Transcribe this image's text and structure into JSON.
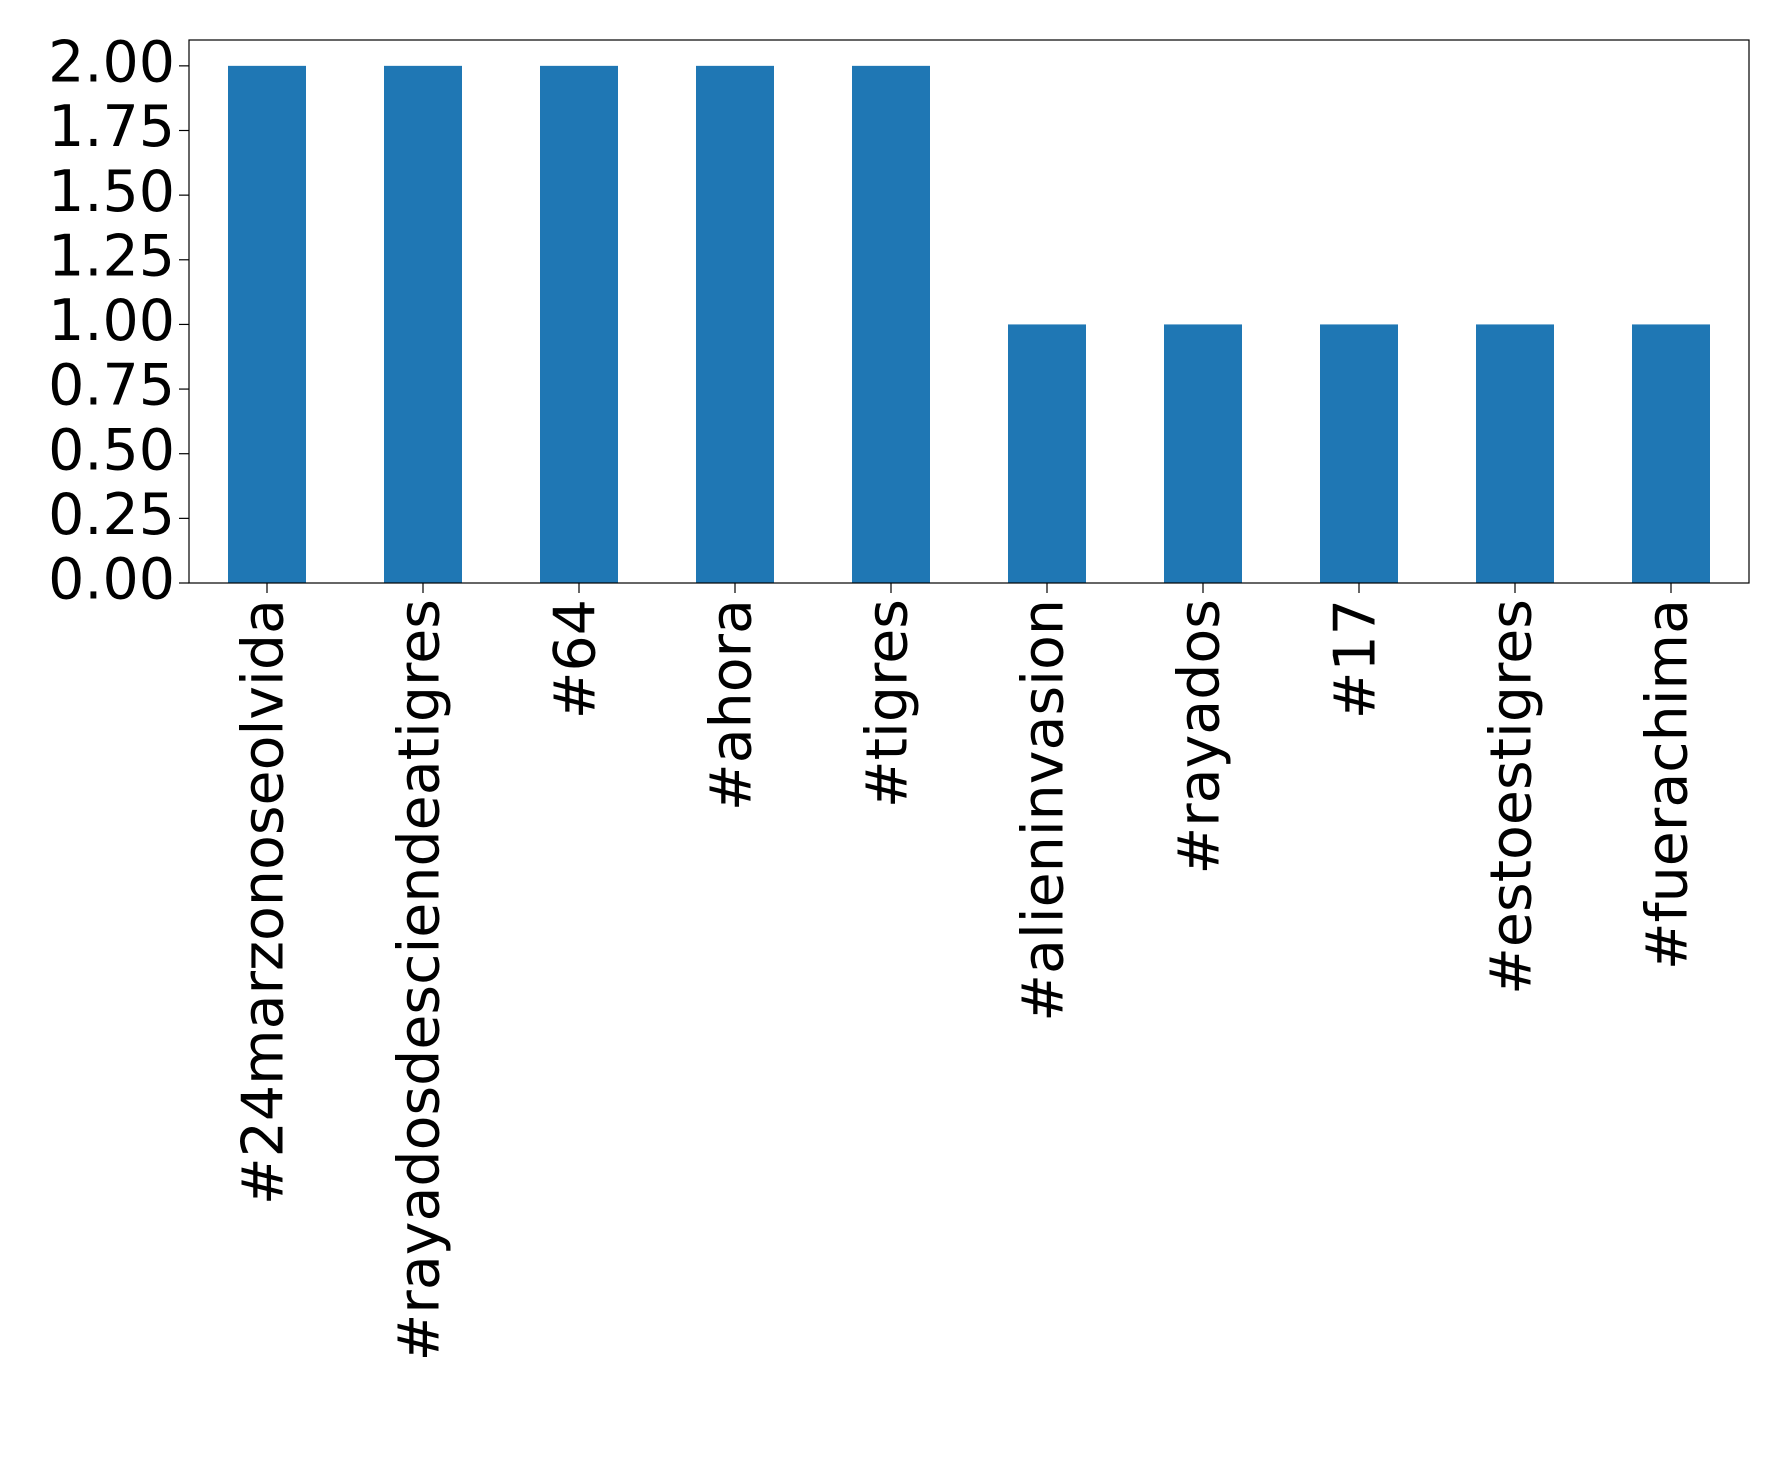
{
  "chart_data": {
    "type": "bar",
    "categories": [
      "#24marzonoseolvida",
      "#rayadosdesciendeatigres",
      "#64",
      "#ahora",
      "#tigres",
      "#alieninvasion",
      "#rayados",
      "#17",
      "#estoestigres",
      "#fuerachima"
    ],
    "values": [
      2,
      2,
      2,
      2,
      2,
      1,
      1,
      1,
      1,
      1
    ],
    "color": "#1f77b4",
    "ylim": [
      0,
      2.1
    ],
    "yticks": [
      {
        "value": 0,
        "label": "0.00"
      },
      {
        "value": 0.25,
        "label": "0.25"
      },
      {
        "value": 0.5,
        "label": "0.50"
      },
      {
        "value": 0.75,
        "label": "0.75"
      },
      {
        "value": 1,
        "label": "1.00"
      },
      {
        "value": 1.25,
        "label": "1.25"
      },
      {
        "value": 1.5,
        "label": "1.50"
      },
      {
        "value": 1.75,
        "label": "1.75"
      },
      {
        "value": 2,
        "label": "2.00"
      }
    ],
    "grid": false
  }
}
